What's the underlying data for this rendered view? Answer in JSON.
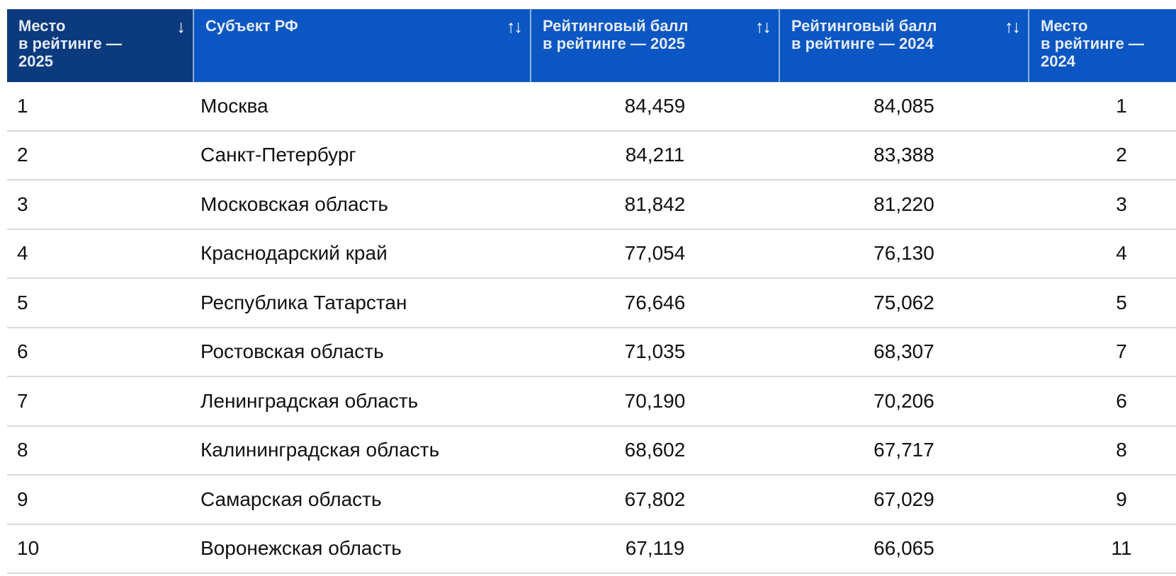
{
  "header": {
    "cells": [
      {
        "label": "Место\nв рейтинге —\n2025",
        "sort": "↓",
        "sort_state": "sorted-descending"
      },
      {
        "label": "Субъект РФ",
        "sort": "↑↓",
        "sort_state": "sortable"
      },
      {
        "label": "Рейтинговый балл\nв рейтинге — 2025",
        "sort": "↑↓",
        "sort_state": "sortable"
      },
      {
        "label": "Рейтинговый балл\nв рейтинге — 2024",
        "sort": "↑↓",
        "sort_state": "sortable"
      },
      {
        "label": "Место\nв рейтинге —\n2024",
        "sort": "",
        "sort_state": "none"
      }
    ]
  },
  "rows": [
    {
      "place_2025": "1",
      "region": "Москва",
      "score_2025": "84,459",
      "score_2024": "84,085",
      "place_2024": "1"
    },
    {
      "place_2025": "2",
      "region": "Санкт-Петербург",
      "score_2025": "84,211",
      "score_2024": "83,388",
      "place_2024": "2"
    },
    {
      "place_2025": "3",
      "region": "Московская область",
      "score_2025": "81,842",
      "score_2024": "81,220",
      "place_2024": "3"
    },
    {
      "place_2025": "4",
      "region": "Краснодарский край",
      "score_2025": "77,054",
      "score_2024": "76,130",
      "place_2024": "4"
    },
    {
      "place_2025": "5",
      "region": "Республика Татарстан",
      "score_2025": "76,646",
      "score_2024": "75,062",
      "place_2024": "5"
    },
    {
      "place_2025": "6",
      "region": "Ростовская область",
      "score_2025": "71,035",
      "score_2024": "68,307",
      "place_2024": "7"
    },
    {
      "place_2025": "7",
      "region": "Ленинградская область",
      "score_2025": "70,190",
      "score_2024": "70,206",
      "place_2024": "6"
    },
    {
      "place_2025": "8",
      "region": "Калининградская область",
      "score_2025": "68,602",
      "score_2024": "67,717",
      "place_2024": "8"
    },
    {
      "place_2025": "9",
      "region": "Самарская область",
      "score_2025": "67,802",
      "score_2024": "67,029",
      "place_2024": "9"
    },
    {
      "place_2025": "10",
      "region": "Воронежская область",
      "score_2025": "67,119",
      "score_2024": "66,065",
      "place_2024": "11"
    }
  ],
  "colors": {
    "header_bg": "#0b56c2",
    "header_active_sort_bg": "#0c3a7e",
    "header_text": "#e4ebf7",
    "header_divider": "rgba(255,255,255,0.55)",
    "row_separator": "#d9d9d9",
    "body_text": "#111111",
    "background": "#ffffff"
  }
}
